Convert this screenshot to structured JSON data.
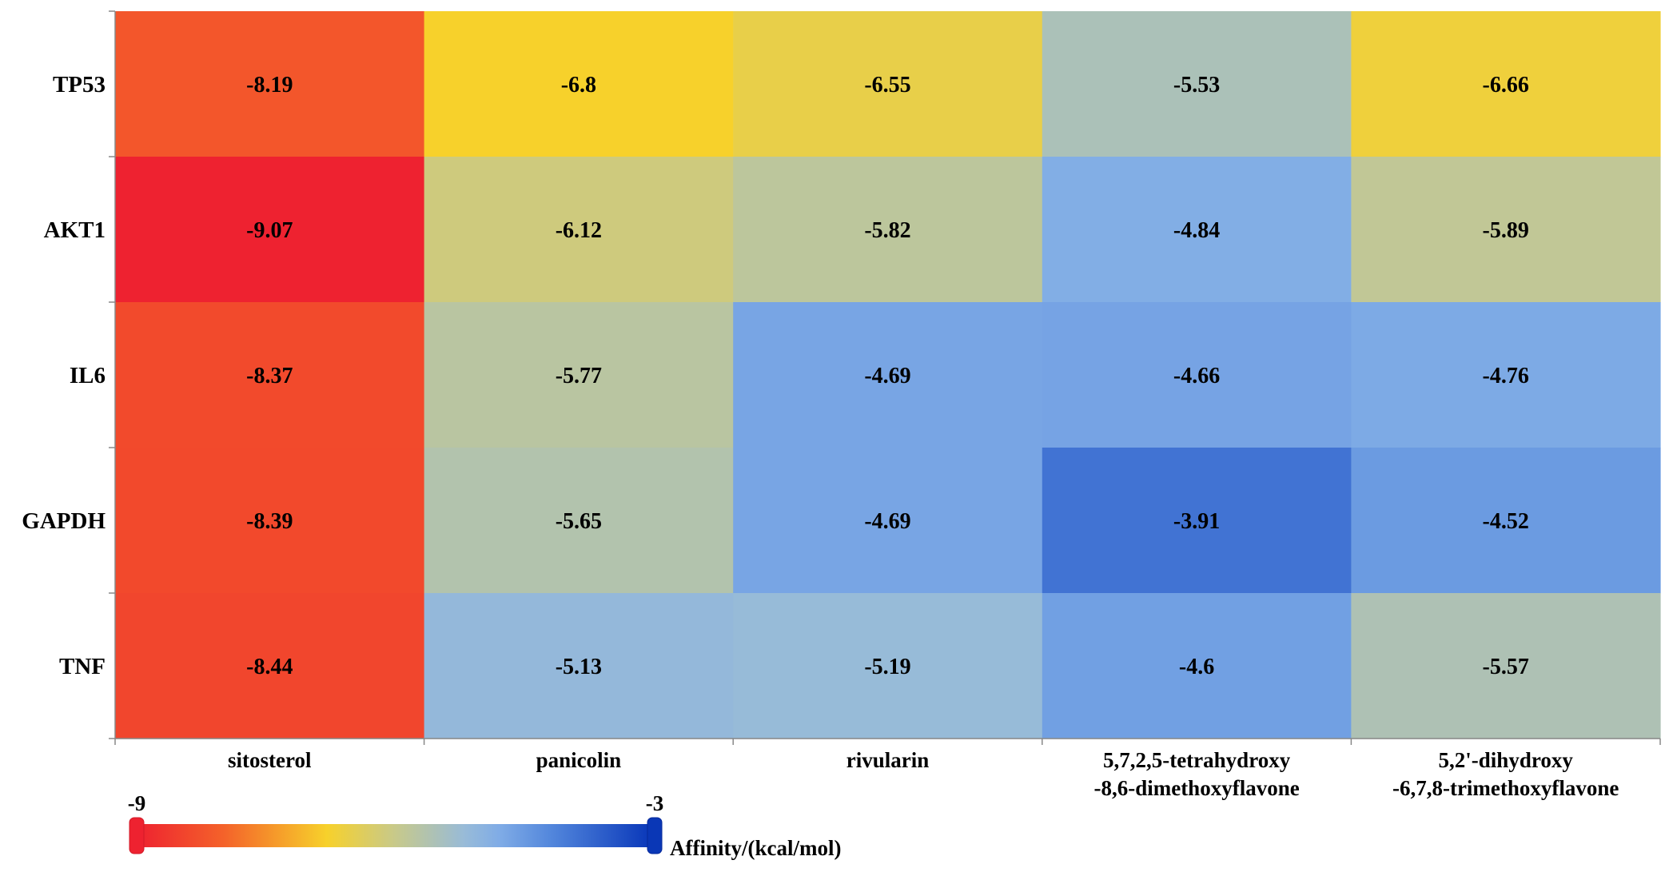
{
  "chart_data": {
    "type": "heatmap",
    "rows": [
      "TP53",
      "AKT1",
      "IL6",
      "GAPDH",
      "TNF"
    ],
    "columns": [
      [
        "sitosterol"
      ],
      [
        "panicolin"
      ],
      [
        "rivularin"
      ],
      [
        "5,7,2,5-tetrahydroxy",
        "-8,6-dimethoxyflavone"
      ],
      [
        "5,2'-dihydroxy",
        "-6,7,8-trimethoxyflavone"
      ]
    ],
    "values": [
      [
        -8.19,
        -6.8,
        -6.55,
        -5.53,
        -6.66
      ],
      [
        -9.07,
        -6.12,
        -5.82,
        -4.84,
        -5.89
      ],
      [
        -8.37,
        -5.77,
        -4.69,
        -4.66,
        -4.76
      ],
      [
        -8.39,
        -5.65,
        -4.69,
        -3.91,
        -4.52
      ],
      [
        -8.44,
        -5.13,
        -5.19,
        -4.6,
        -5.57
      ]
    ],
    "value_labels": [
      [
        "-8.19",
        "-6.8",
        "-6.55",
        "-5.53",
        "-6.66"
      ],
      [
        "-9.07",
        "-6.12",
        "-5.82",
        "-4.84",
        "-5.89"
      ],
      [
        "-8.37",
        "-5.77",
        "-4.69",
        "-4.66",
        "-4.76"
      ],
      [
        "-8.39",
        "-5.65",
        "-4.69",
        "-3.91",
        "-4.52"
      ],
      [
        "-8.44",
        "-5.13",
        "-5.19",
        "-4.6",
        "-5.57"
      ]
    ],
    "colorbar": {
      "min": -9,
      "max": -3,
      "min_label": "-9",
      "max_label": "-3",
      "title": "Affinity/(kcal/mol)",
      "stops": [
        {
          "value": -9.0,
          "color": "#ee2230"
        },
        {
          "value": -8.0,
          "color": "#f4622a"
        },
        {
          "value": -6.8,
          "color": "#f7d12b"
        },
        {
          "value": -6.0,
          "color": "#c7c98b"
        },
        {
          "value": -5.2,
          "color": "#98bbd8"
        },
        {
          "value": -4.8,
          "color": "#80ace6"
        },
        {
          "value": -4.2,
          "color": "#5387dc"
        },
        {
          "value": -3.0,
          "color": "#0735b8"
        }
      ],
      "end_cap_colors": {
        "low": "#ee2230",
        "high": "#0a37b6"
      }
    }
  }
}
